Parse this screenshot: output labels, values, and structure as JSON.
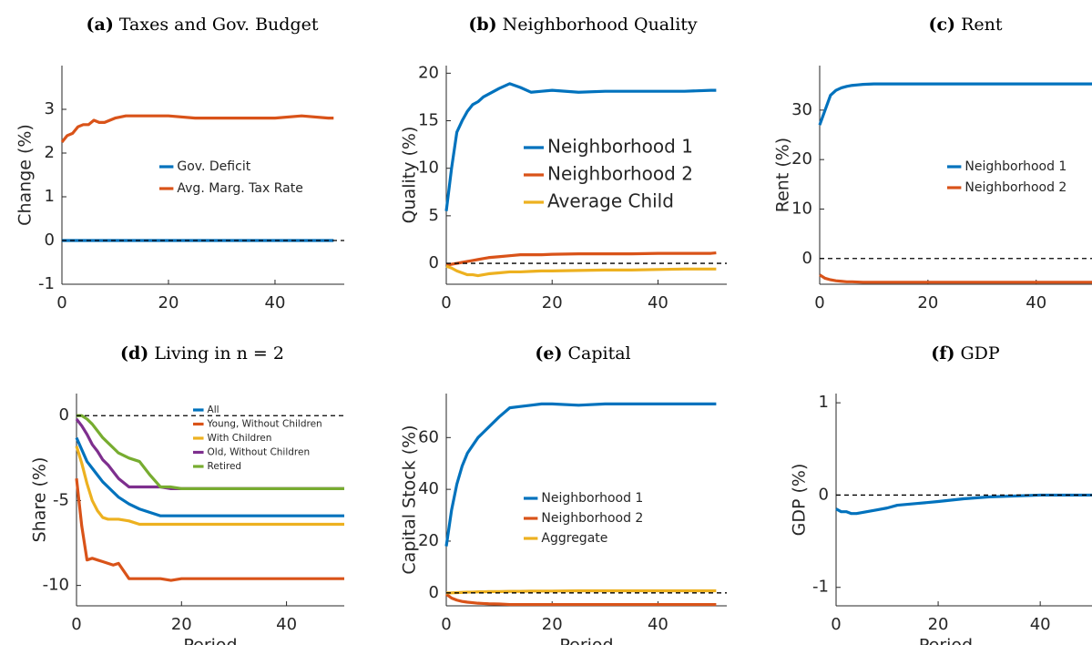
{
  "chart_data": [
    {
      "type": "line",
      "panel": "(a)",
      "title": "Taxes and Gov. Budget",
      "y_label": "Change (%)",
      "x": [
        0,
        1,
        2,
        3,
        4,
        5,
        6,
        7,
        8,
        10,
        12,
        14,
        16,
        18,
        20,
        25,
        30,
        35,
        40,
        45,
        50,
        51
      ],
      "series": [
        {
          "name": "Gov. Deficit",
          "color": "#0072BD",
          "values": [
            0,
            0,
            0,
            0,
            0,
            0,
            0,
            0,
            0,
            0,
            0,
            0,
            0,
            0,
            0,
            0,
            0,
            0,
            0,
            0,
            0,
            0
          ]
        },
        {
          "name": "Avg. Marg. Tax Rate",
          "color": "#D95319",
          "values": [
            2.25,
            2.4,
            2.45,
            2.6,
            2.65,
            2.65,
            2.75,
            2.7,
            2.7,
            2.8,
            2.85,
            2.85,
            2.85,
            2.85,
            2.85,
            2.8,
            2.8,
            2.8,
            2.8,
            2.85,
            2.8,
            2.8
          ]
        }
      ],
      "xlim": [
        0,
        53
      ],
      "xticks": [
        0,
        20,
        40
      ],
      "ylim": [
        -1,
        4
      ],
      "yticks": [
        -1,
        0,
        1,
        2,
        3
      ],
      "zero_line": true
    },
    {
      "type": "line",
      "panel": "(b)",
      "title": "Neighborhood Quality",
      "y_label": "Quality (%)",
      "x": [
        0,
        1,
        2,
        3,
        4,
        5,
        6,
        7,
        8,
        10,
        12,
        14,
        16,
        18,
        20,
        25,
        30,
        35,
        40,
        45,
        50,
        51
      ],
      "series": [
        {
          "name": "Neighborhood 1",
          "color": "#0072BD",
          "values": [
            5.5,
            10,
            13.8,
            15,
            16,
            16.7,
            17,
            17.5,
            17.8,
            18.4,
            18.9,
            18.5,
            18,
            18.1,
            18.2,
            18,
            18.1,
            18.1,
            18.1,
            18.1,
            18.2,
            18.2
          ]
        },
        {
          "name": "Neighborhood 2",
          "color": "#D95319",
          "values": [
            -0.2,
            -0.1,
            0,
            0.1,
            0.2,
            0.3,
            0.4,
            0.5,
            0.6,
            0.7,
            0.8,
            0.9,
            0.9,
            0.9,
            0.95,
            1,
            1,
            1,
            1.05,
            1.05,
            1.05,
            1.1
          ]
        },
        {
          "name": "Average Child",
          "color": "#EDB120",
          "values": [
            -0.3,
            -0.5,
            -0.8,
            -1,
            -1.2,
            -1.2,
            -1.3,
            -1.2,
            -1.1,
            -1,
            -0.9,
            -0.9,
            -0.85,
            -0.8,
            -0.8,
            -0.75,
            -0.7,
            -0.7,
            -0.65,
            -0.6,
            -0.6,
            -0.6
          ]
        }
      ],
      "xlim": [
        0,
        53
      ],
      "xticks": [
        0,
        20,
        40
      ],
      "ylim": [
        -2.2,
        20.8
      ],
      "yticks": [
        0,
        5,
        10,
        15,
        20
      ],
      "zero_line": true
    },
    {
      "type": "line",
      "panel": "(c)",
      "title": "Rent",
      "y_label": "Rent (%)",
      "x": [
        0,
        1,
        2,
        3,
        4,
        5,
        6,
        7,
        8,
        10,
        12,
        14,
        16,
        18,
        20,
        25,
        30,
        35,
        40,
        45,
        50,
        51
      ],
      "series": [
        {
          "name": "Neighborhood 1",
          "color": "#0072BD",
          "values": [
            27,
            30,
            33,
            34,
            34.5,
            34.8,
            35,
            35.1,
            35.2,
            35.3,
            35.3,
            35.3,
            35.3,
            35.3,
            35.3,
            35.3,
            35.3,
            35.3,
            35.3,
            35.3,
            35.3,
            35.3
          ]
        },
        {
          "name": "Neighborhood 2",
          "color": "#D95319",
          "values": [
            -3.3,
            -4,
            -4.3,
            -4.5,
            -4.6,
            -4.7,
            -4.7,
            -4.75,
            -4.8,
            -4.8,
            -4.8,
            -4.8,
            -4.8,
            -4.8,
            -4.8,
            -4.8,
            -4.8,
            -4.8,
            -4.8,
            -4.8,
            -4.8,
            -4.8
          ]
        }
      ],
      "xlim": [
        0,
        53
      ],
      "xticks": [
        0,
        20,
        40
      ],
      "ylim": [
        -5.2,
        39
      ],
      "yticks": [
        0,
        10,
        20,
        30
      ],
      "zero_line": true
    },
    {
      "type": "line",
      "panel": "(d)",
      "title": "Living in n = 2",
      "y_label": "Share (%)",
      "x_label": "Period",
      "x": [
        0,
        1,
        2,
        3,
        4,
        5,
        6,
        7,
        8,
        10,
        12,
        14,
        16,
        18,
        20,
        25,
        30,
        35,
        40,
        45,
        50,
        51
      ],
      "series": [
        {
          "name": "All",
          "color": "#0072BD",
          "values": [
            -1.3,
            -2,
            -2.7,
            -3.1,
            -3.5,
            -3.9,
            -4.2,
            -4.5,
            -4.8,
            -5.2,
            -5.5,
            -5.7,
            -5.9,
            -5.9,
            -5.9,
            -5.9,
            -5.9,
            -5.9,
            -5.9,
            -5.9,
            -5.9,
            -5.9
          ]
        },
        {
          "name": "Young, Without Children",
          "color": "#D95319",
          "values": [
            -3.7,
            -6.5,
            -8.5,
            -8.4,
            -8.5,
            -8.6,
            -8.7,
            -8.8,
            -8.7,
            -9.6,
            -9.6,
            -9.6,
            -9.6,
            -9.7,
            -9.6,
            -9.6,
            -9.6,
            -9.6,
            -9.6,
            -9.6,
            -9.6,
            -9.6
          ]
        },
        {
          "name": "With Children",
          "color": "#EDB120",
          "values": [
            -1.8,
            -2.8,
            -4,
            -5,
            -5.6,
            -6,
            -6.1,
            -6.1,
            -6.1,
            -6.2,
            -6.4,
            -6.4,
            -6.4,
            -6.4,
            -6.4,
            -6.4,
            -6.4,
            -6.4,
            -6.4,
            -6.4,
            -6.4,
            -6.4
          ]
        },
        {
          "name": "Old, Without Children",
          "color": "#7E2F8E",
          "values": [
            -0.2,
            -0.6,
            -1.1,
            -1.7,
            -2.1,
            -2.6,
            -2.9,
            -3.3,
            -3.7,
            -4.2,
            -4.2,
            -4.2,
            -4.2,
            -4.3,
            -4.3,
            -4.3,
            -4.3,
            -4.3,
            -4.3,
            -4.3,
            -4.3,
            -4.3
          ]
        },
        {
          "name": "Retired",
          "color": "#77AC30",
          "values": [
            0,
            0,
            -0.2,
            -0.5,
            -0.9,
            -1.3,
            -1.6,
            -1.9,
            -2.2,
            -2.5,
            -2.7,
            -3.5,
            -4.2,
            -4.2,
            -4.3,
            -4.3,
            -4.3,
            -4.3,
            -4.3,
            -4.3,
            -4.3,
            -4.3
          ]
        }
      ],
      "xlim": [
        0,
        51
      ],
      "xticks": [
        0,
        20,
        40
      ],
      "ylim": [
        -11.2,
        1.3
      ],
      "yticks": [
        -10,
        -5,
        0
      ],
      "zero_line": true
    },
    {
      "type": "line",
      "panel": "(e)",
      "title": "Capital",
      "y_label": "Capital Stock (%)",
      "x_label": "Period",
      "x": [
        0,
        1,
        2,
        3,
        4,
        5,
        6,
        7,
        8,
        10,
        12,
        14,
        16,
        18,
        20,
        25,
        30,
        35,
        40,
        45,
        50,
        51
      ],
      "series": [
        {
          "name": "Neighborhood 1",
          "color": "#0072BD",
          "values": [
            18,
            32,
            42,
            49,
            54,
            57,
            60,
            62,
            64,
            68,
            71.5,
            72,
            72.5,
            73,
            73,
            72.5,
            73,
            73,
            73,
            73,
            73,
            73
          ]
        },
        {
          "name": "Neighborhood 2",
          "color": "#D95319",
          "values": [
            -0.5,
            -2,
            -2.8,
            -3.3,
            -3.6,
            -3.8,
            -4,
            -4.1,
            -4.2,
            -4.3,
            -4.5,
            -4.5,
            -4.5,
            -4.5,
            -4.5,
            -4.5,
            -4.5,
            -4.5,
            -4.5,
            -4.5,
            -4.5,
            -4.5
          ]
        },
        {
          "name": "Aggregate",
          "color": "#EDB120",
          "values": [
            0,
            0,
            0.1,
            0.2,
            0.3,
            0.3,
            0.4,
            0.4,
            0.5,
            0.5,
            0.6,
            0.6,
            0.7,
            0.7,
            0.7,
            0.8,
            0.8,
            0.8,
            0.8,
            0.8,
            0.8,
            0.8
          ]
        }
      ],
      "xlim": [
        0,
        53
      ],
      "xticks": [
        0,
        20,
        40
      ],
      "ylim": [
        -5,
        77
      ],
      "yticks": [
        0,
        20,
        40,
        60
      ],
      "zero_line": true
    },
    {
      "type": "line",
      "panel": "(f)",
      "title": "GDP",
      "y_label": "GDP (%)",
      "x_label": "Period",
      "x": [
        0,
        1,
        2,
        3,
        4,
        5,
        6,
        7,
        8,
        10,
        12,
        14,
        16,
        18,
        20,
        25,
        30,
        35,
        40,
        45,
        50,
        51
      ],
      "series": [
        {
          "name": "GDP",
          "color": "#0072BD",
          "values": [
            -0.15,
            -0.18,
            -0.18,
            -0.2,
            -0.2,
            -0.19,
            -0.18,
            -0.17,
            -0.16,
            -0.14,
            -0.11,
            -0.1,
            -0.09,
            -0.08,
            -0.07,
            -0.04,
            -0.02,
            -0.01,
            0,
            0,
            0,
            0
          ]
        }
      ],
      "xlim": [
        0,
        53
      ],
      "xticks": [
        0,
        20,
        40
      ],
      "ylim": [
        -1.2,
        1.1
      ],
      "yticks": [
        -1,
        0,
        1
      ],
      "zero_line": true,
      "legend": false
    }
  ]
}
